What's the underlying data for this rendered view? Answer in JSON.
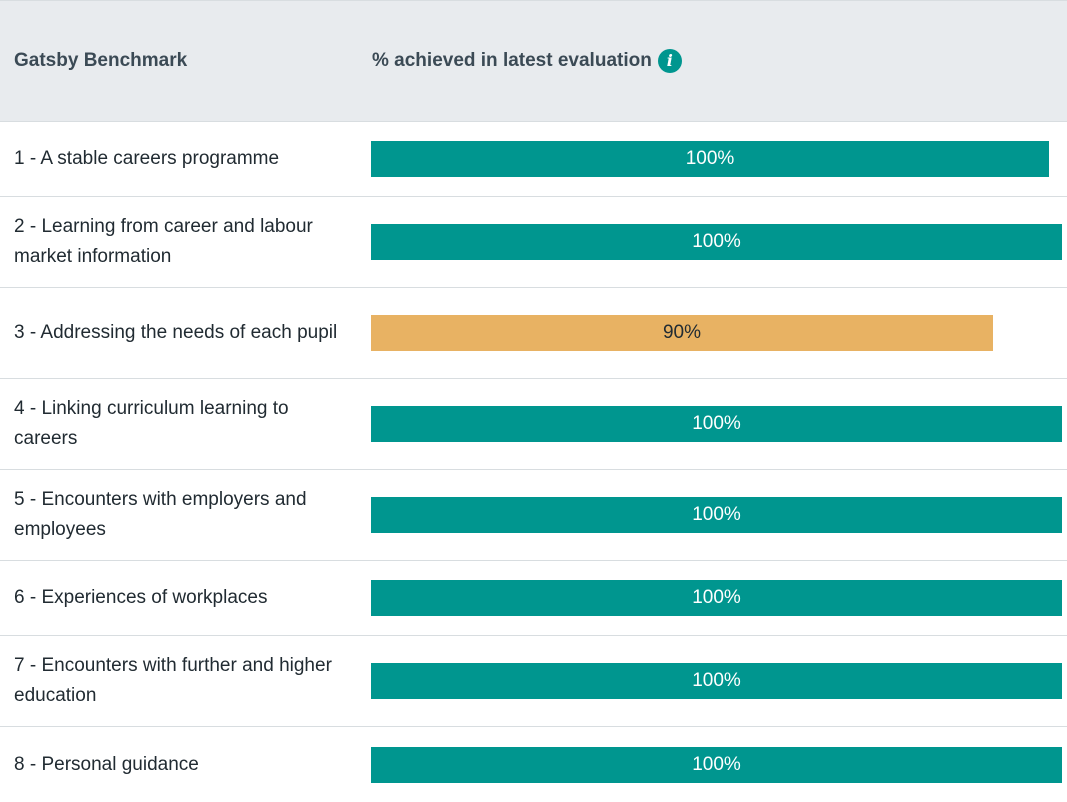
{
  "table": {
    "header": {
      "benchmark_label": "Gatsby Benchmark",
      "percent_label": "% achieved in latest evaluation",
      "info_icon": "info-icon"
    },
    "colors": {
      "achieved": "#00968f",
      "partial": "#e8b263",
      "header_bg": "#e8ebee"
    },
    "rows": [
      {
        "name": "1 - A stable careers programme",
        "value": 100,
        "label": "100%",
        "status": "achieved"
      },
      {
        "name": "2 - Learning from career and labour market information",
        "value": 100,
        "label": "100%",
        "status": "achieved"
      },
      {
        "name": "3 - Addressing the needs of each pupil",
        "value": 90,
        "label": "90%",
        "status": "partial"
      },
      {
        "name": "4 - Linking curriculum learning to careers",
        "value": 100,
        "label": "100%",
        "status": "achieved"
      },
      {
        "name": "5 - Encounters with employers and employees",
        "value": 100,
        "label": "100%",
        "status": "achieved"
      },
      {
        "name": "6 - Experiences of workplaces",
        "value": 100,
        "label": "100%",
        "status": "achieved"
      },
      {
        "name": "7 - Encounters with further and higher education",
        "value": 100,
        "label": "100%",
        "status": "achieved"
      },
      {
        "name": "8 - Personal guidance",
        "value": 100,
        "label": "100%",
        "status": "achieved"
      }
    ]
  }
}
